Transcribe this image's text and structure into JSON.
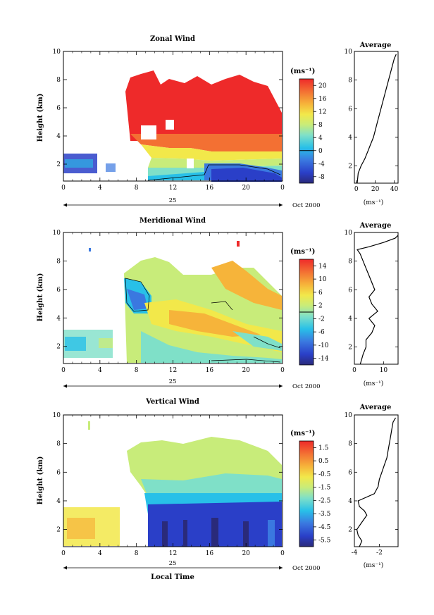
{
  "figure": {
    "date_label": "Oct 2000",
    "day_label": "25",
    "xlabel_bottom": "Local Time"
  },
  "chart_data": [
    {
      "type": "heatmap",
      "title": "Zonal Wind",
      "ylabel": "Height (km)",
      "x_ticks": [
        "0",
        "4",
        "8",
        "12",
        "16",
        "20",
        "0"
      ],
      "x_range": [
        0,
        24
      ],
      "y_ticks": [
        "2",
        "4",
        "6",
        "8",
        "10"
      ],
      "y_range": [
        0.8,
        10
      ],
      "colorbar": {
        "unit": "(ms⁻¹)",
        "tick_labels": [
          "20",
          "16",
          "12",
          "8",
          "4",
          "0",
          "-4",
          "-8"
        ],
        "range": [
          -10,
          22
        ],
        "zero_line": 0
      },
      "average_profile": {
        "title": "Average",
        "xlabel": "(ms⁻¹)",
        "x_ticks": [
          "0",
          "20",
          "40"
        ],
        "x_range": [
          -2,
          44
        ],
        "y_ticks": [
          "2",
          "4",
          "6",
          "8",
          "10"
        ],
        "heights": [
          0.8,
          1.5,
          2.0,
          2.5,
          3.0,
          3.5,
          4.0,
          4.5,
          5.0,
          5.5,
          6.0,
          6.5,
          7.0,
          7.5,
          8.0,
          8.5,
          9.0,
          9.5,
          9.8
        ],
        "values": [
          1,
          2,
          5,
          9,
          12,
          15,
          18,
          20,
          22,
          24,
          26,
          28,
          30,
          32,
          34,
          36,
          38,
          40,
          42
        ]
      }
    },
    {
      "type": "heatmap",
      "title": "Meridional Wind",
      "ylabel": "Height (km)",
      "x_ticks": [
        "0",
        "4",
        "8",
        "12",
        "16",
        "20",
        "0"
      ],
      "x_range": [
        0,
        24
      ],
      "y_ticks": [
        "2",
        "4",
        "6",
        "8",
        "10"
      ],
      "y_range": [
        0.8,
        10
      ],
      "colorbar": {
        "unit": "(ms⁻¹)",
        "tick_labels": [
          "14",
          "10",
          "6",
          "2",
          "-2",
          "-6",
          "-10",
          "-14"
        ],
        "range": [
          -16,
          16
        ],
        "zero_line": 0
      },
      "average_profile": {
        "title": "Average",
        "xlabel": "(ms⁻¹)",
        "x_ticks": [
          "0",
          "10"
        ],
        "x_range": [
          0,
          15
        ],
        "y_ticks": [
          "2",
          "4",
          "6",
          "8",
          "10"
        ],
        "heights": [
          0.8,
          1.5,
          2.0,
          2.5,
          3.0,
          3.5,
          4.0,
          4.5,
          5.0,
          5.5,
          6.0,
          6.5,
          7.0,
          7.5,
          8.0,
          8.5,
          8.8,
          9.0,
          9.3,
          9.6,
          9.8
        ],
        "values": [
          2,
          3,
          4,
          4,
          6,
          7,
          5,
          8,
          6,
          5,
          7,
          6,
          5,
          4,
          3,
          2,
          1,
          5,
          10,
          14,
          15
        ]
      }
    },
    {
      "type": "heatmap",
      "title": "Vertical Wind",
      "ylabel": "Height (km)",
      "x_ticks": [
        "0",
        "4",
        "8",
        "12",
        "16",
        "20",
        "0"
      ],
      "x_range": [
        0,
        24
      ],
      "y_ticks": [
        "2",
        "4",
        "6",
        "8",
        "10"
      ],
      "y_range": [
        0.8,
        10
      ],
      "colorbar": {
        "unit": "(ms⁻¹)",
        "tick_labels": [
          "1.5",
          "0.5",
          "-0.5",
          "-1.5",
          "-2.5",
          "-3.5",
          "-4.5",
          "-5.5"
        ],
        "range": [
          -6,
          2
        ],
        "zero_line": null
      },
      "average_profile": {
        "title": "Average",
        "xlabel": "(ms⁻¹)",
        "x_ticks": [
          "-4",
          "-2"
        ],
        "x_range": [
          -4,
          -0.5
        ],
        "y_ticks": [
          "2",
          "4",
          "6",
          "8",
          "10"
        ],
        "heights": [
          0.8,
          1.2,
          1.6,
          2.0,
          2.5,
          3.0,
          3.3,
          3.6,
          4.0,
          4.5,
          5.0,
          5.5,
          6.0,
          6.5,
          7.0,
          7.5,
          8.0,
          8.5,
          9.0,
          9.5,
          9.8
        ],
        "values": [
          -3.6,
          -3.4,
          -3.7,
          -3.8,
          -3.4,
          -3.0,
          -3.2,
          -3.6,
          -3.7,
          -2.4,
          -2.1,
          -2.0,
          -1.8,
          -1.6,
          -1.4,
          -1.3,
          -1.2,
          -1.1,
          -1.0,
          -0.9,
          -0.7
        ]
      }
    }
  ]
}
